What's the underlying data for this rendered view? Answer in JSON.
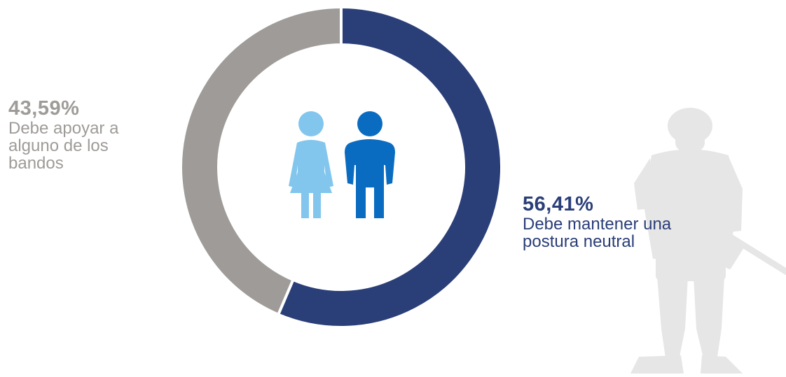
{
  "chart_data": {
    "type": "pie",
    "variant": "donut",
    "slices": [
      {
        "label": "Debe mantener una postura neutral",
        "value": 56.41,
        "display_value": "56,41%",
        "color": "#2a3e78"
      },
      {
        "label": "Debe apoyar a alguno de los bandos",
        "value": 43.59,
        "display_value": "43,59%",
        "color": "#9e9b98"
      }
    ],
    "start": "top",
    "direction": "clockwise",
    "center_icons": [
      "woman-icon",
      "man-icon"
    ],
    "background_icon": "soldier-silhouette-icon"
  },
  "labels": {
    "left": {
      "value": "43,59%",
      "line1": "Debe apoyar a",
      "line2": "alguno de los",
      "line3": "bandos"
    },
    "right": {
      "value": "56,41%",
      "line1": "Debe mantener una",
      "line2": "postura neutral"
    }
  },
  "colors": {
    "neutral": "#2a3e78",
    "support": "#9e9b98",
    "woman": "#82c6ee",
    "man": "#0a6cc0",
    "soldier": "#e6e6e6"
  }
}
